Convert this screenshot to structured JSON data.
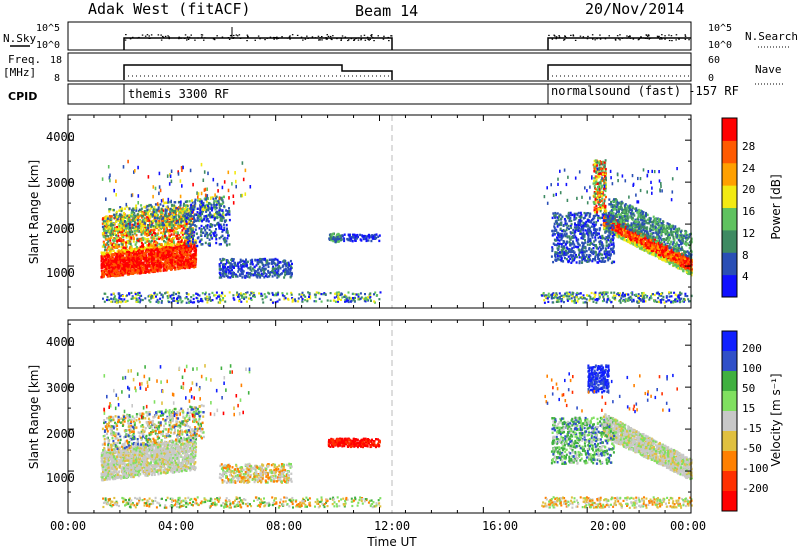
{
  "header": {
    "radar": "Adak West (fitACF)",
    "beam": "Beam 14",
    "date": "20/Nov/2014"
  },
  "nsky_panel": {
    "left_label": "N.Sky",
    "right_label": "N.Search",
    "left_ticks": [
      "10^5",
      "10^0"
    ],
    "right_ticks": [
      "10^5",
      "10^0"
    ]
  },
  "freq_panel": {
    "left_label_1": "Freq.",
    "left_label_2": "[MHz]",
    "right_label": "Nave",
    "left_ticks": [
      "18",
      "8"
    ],
    "right_ticks": [
      "60",
      "0"
    ]
  },
  "cpid_panel": {
    "label": "CPID",
    "programs": [
      "themis 3300 RF",
      "normalsound (fast) -157 RF"
    ]
  },
  "chart_data": [
    {
      "type": "heatmap",
      "name": "power",
      "ylabel": "Slant Range [km]",
      "yticks": [
        "1000",
        "2000",
        "3000",
        "4000"
      ],
      "colorbar_label": "Power [dB]",
      "colorbar_ticks": [
        "4",
        "8",
        "12",
        "16",
        "20",
        "24",
        "28"
      ],
      "colors": [
        "#1010ff",
        "#2a4fb5",
        "#3e8a62",
        "#5fc25f",
        "#f2ea12",
        "#ffa000",
        "#ff5a00",
        "#ff0000"
      ],
      "data_gaps_hours": [
        [
          0,
          1.2
        ],
        [
          12,
          18.2
        ]
      ]
    },
    {
      "type": "heatmap",
      "name": "velocity",
      "ylabel": "Slant Range [km]",
      "yticks": [
        "1000",
        "2000",
        "3000",
        "4000"
      ],
      "colorbar_label": "Velocity [m s⁻¹]",
      "colorbar_ticks": [
        "200",
        "100",
        "50",
        "15",
        "-15",
        "-50",
        "-100",
        "-200"
      ],
      "colors": [
        "#1020ff",
        "#3050c8",
        "#40b040",
        "#80e060",
        "#c8c8c8",
        "#e0c040",
        "#ff8000",
        "#ff3000",
        "#ff0000"
      ]
    }
  ],
  "x_axis": {
    "ticks": [
      "00:00",
      "04:00",
      "08:00",
      "12:00",
      "16:00",
      "20:00",
      "00:00"
    ],
    "label": "Time UT"
  }
}
